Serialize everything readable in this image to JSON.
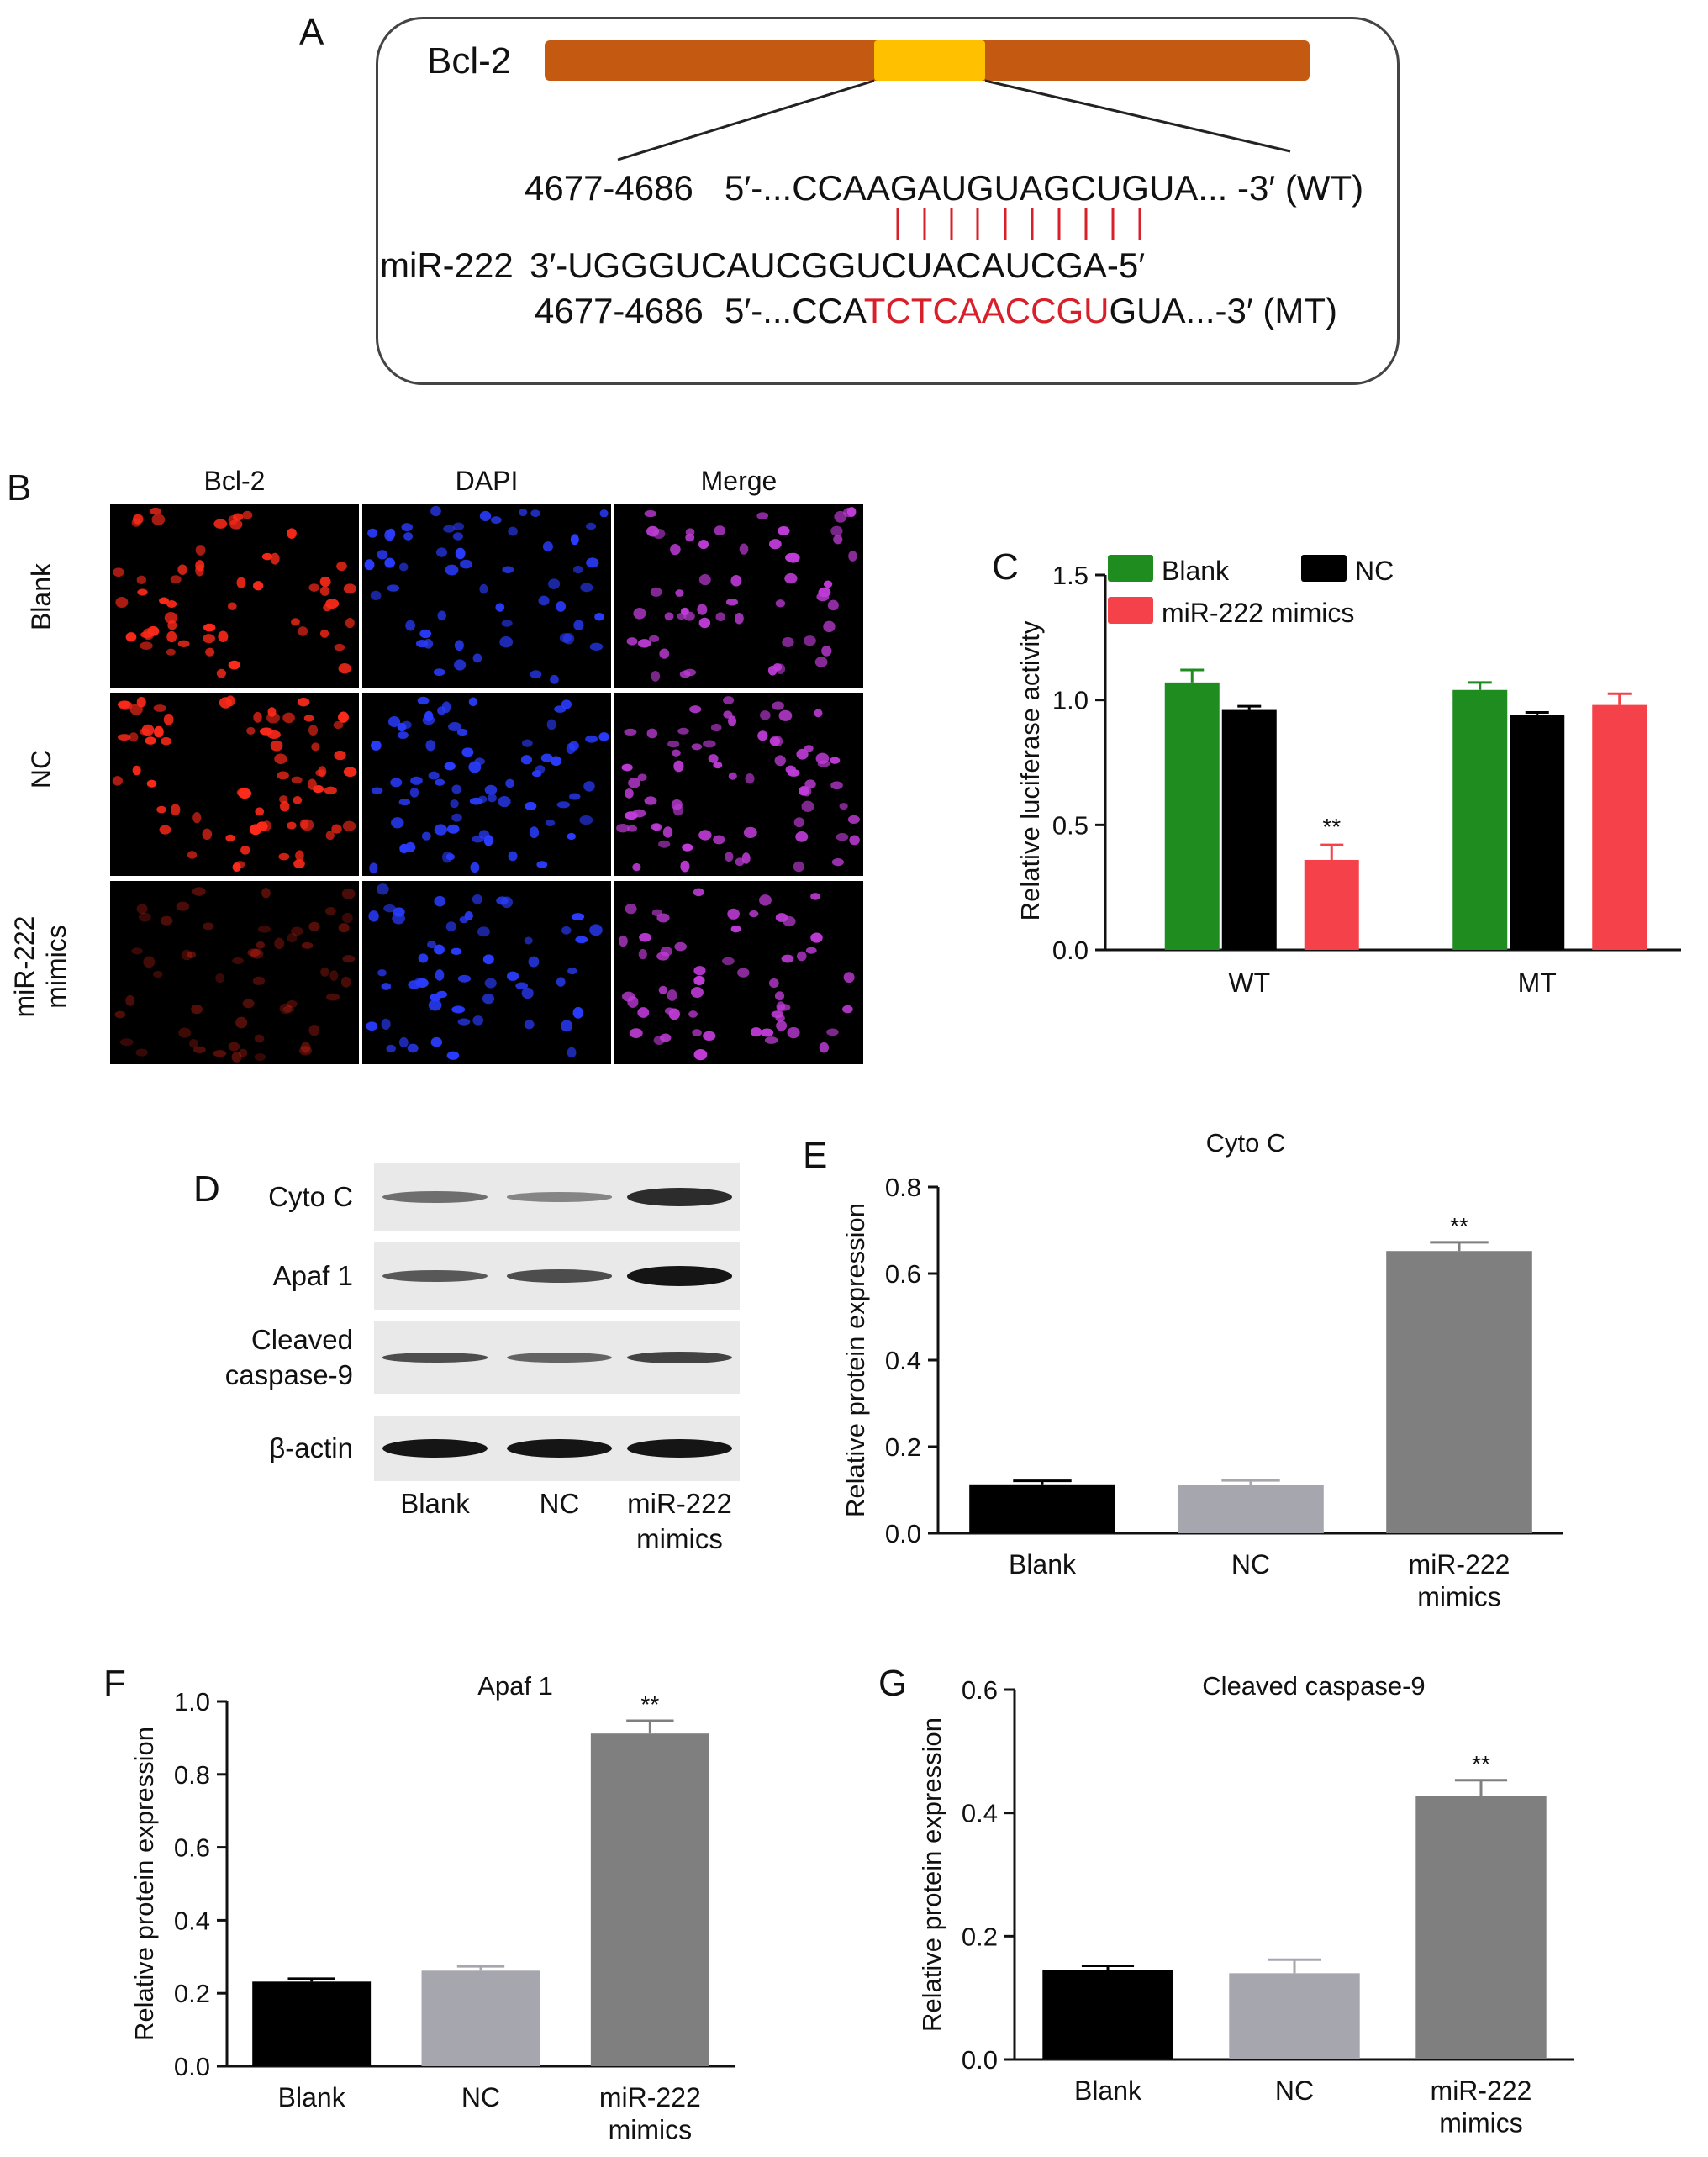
{
  "panel_labels": {
    "a": "A",
    "b": "B",
    "c": "C",
    "d": "D",
    "e": "E",
    "f": "F",
    "g": "G"
  },
  "panel_a": {
    "gene_label": "Bcl-2",
    "wt": {
      "pos": "4677-4686",
      "prefix": "5′-...CCAAGAUGUAGCUGUA... -3′ (WT)"
    },
    "mirna": {
      "name": "miR-222",
      "seq": "3′-UGGGUCAUCGGUCUACAUCGA-5′"
    },
    "mt": {
      "pos": "4677-4686",
      "pre": "5′-...CCA",
      "mut": "TCTCAACCGU",
      "post": "GUA...-3′ (MT)"
    },
    "colors": {
      "bar": "#c45a12",
      "highlight": "#ffc000",
      "mutation": "#d8202a",
      "pairing": "#d8202a"
    }
  },
  "panel_b": {
    "columns": [
      "Bcl-2",
      "DAPI",
      "Merge"
    ],
    "rows": [
      "Blank",
      "NC",
      "miR-222\nmimics"
    ],
    "channel_colors": [
      "#ff2a1a",
      "#2a3cff",
      "#c03cd8"
    ]
  },
  "panel_d": {
    "proteins": [
      "Cyto C",
      "Apaf 1",
      "Cleaved\ncaspase-9",
      "β-actin"
    ],
    "lanes": [
      "Blank",
      "NC",
      "miR-222\nmimics"
    ]
  },
  "chart_data": [
    {
      "id": "C",
      "type": "bar",
      "title": "",
      "xlabel": "",
      "ylabel": "Relative luciferase activity",
      "categories": [
        "WT",
        "MT"
      ],
      "series": [
        {
          "name": "Blank",
          "color": "#1f8c1f",
          "values": [
            1.07,
            1.04
          ],
          "errors": [
            0.05,
            0.03
          ]
        },
        {
          "name": "NC",
          "color": "#000000",
          "values": [
            0.96,
            0.94
          ],
          "errors": [
            0.015,
            0.01
          ]
        },
        {
          "name": "miR-222 mimics",
          "color": "#f5424a",
          "values": [
            0.36,
            0.98
          ],
          "errors": [
            0.06,
            0.045
          ]
        }
      ],
      "significance": [
        {
          "series": 2,
          "category": 0,
          "label": "**"
        }
      ],
      "ylim": [
        0,
        1.5
      ],
      "yticks": [
        "0.0",
        "0.5",
        "1.0",
        "1.5"
      ],
      "legend": "top"
    },
    {
      "id": "E",
      "type": "bar",
      "title": "Cyto C",
      "ylabel": "Relative protein expression",
      "categories": [
        "Blank",
        "NC",
        "miR-222\nmimics"
      ],
      "values": [
        0.113,
        0.112,
        0.652
      ],
      "errors": [
        0.008,
        0.01,
        0.02
      ],
      "colors": [
        "#000000",
        "#a6a6ae",
        "#7f7f7f"
      ],
      "significance": [
        {
          "index": 2,
          "label": "**"
        }
      ],
      "ylim": [
        0,
        0.8
      ],
      "yticks": [
        "0.0",
        "0.2",
        "0.4",
        "0.6",
        "0.8"
      ]
    },
    {
      "id": "F",
      "type": "bar",
      "title": "Apaf 1",
      "ylabel": "Relative protein expression",
      "categories": [
        "Blank",
        "NC",
        "miR-222\nmimics"
      ],
      "values": [
        0.232,
        0.262,
        0.912
      ],
      "errors": [
        0.008,
        0.012,
        0.035
      ],
      "colors": [
        "#000000",
        "#a6a6ae",
        "#7f7f7f"
      ],
      "significance": [
        {
          "index": 2,
          "label": "**"
        }
      ],
      "ylim": [
        0,
        1.0
      ],
      "yticks": [
        "0.0",
        "0.2",
        "0.4",
        "0.6",
        "0.8",
        "1.0"
      ]
    },
    {
      "id": "G",
      "type": "bar",
      "title": "Cleaved caspase-9",
      "ylabel": "Relative protein expression",
      "categories": [
        "Blank",
        "NC",
        "miR-222\nmimics"
      ],
      "values": [
        0.145,
        0.14,
        0.428
      ],
      "errors": [
        0.007,
        0.022,
        0.025
      ],
      "colors": [
        "#000000",
        "#a6a6ae",
        "#7f7f7f"
      ],
      "significance": [
        {
          "index": 2,
          "label": "**"
        }
      ],
      "ylim": [
        0,
        0.6
      ],
      "yticks": [
        "0.0",
        "0.2",
        "0.4",
        "0.6"
      ]
    }
  ]
}
